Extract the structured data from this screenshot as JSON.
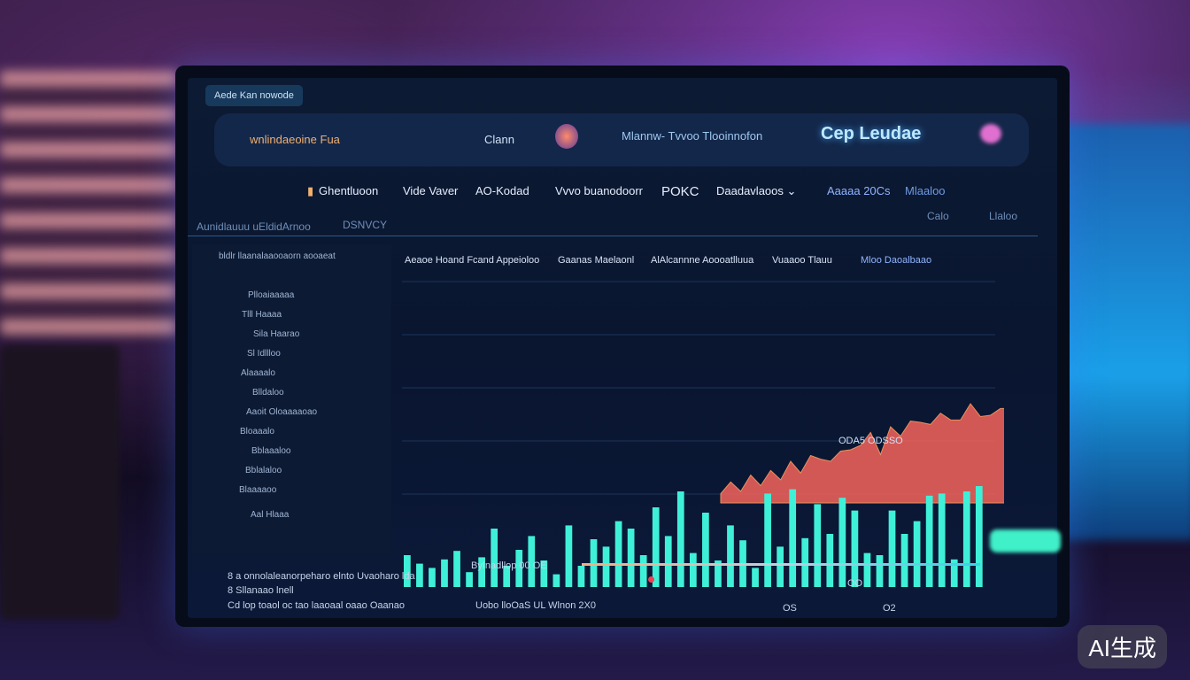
{
  "top_pill": "Aede Kan nowode",
  "header": {
    "brand": "wnlindaeoine Fua",
    "item1": "Clann",
    "item2": "Mlannw- Tvvoo Tlooinnofon",
    "title": "Cep Leudae"
  },
  "nav": [
    "Ghentluoon",
    "Vide Vaver",
    "AO-Kodad",
    "Vvvo buanodoorr",
    "POKC",
    "Daadavlaoos ⌄",
    "Aaaaa 20Cs",
    "Mlaaloo"
  ],
  "subbar": {
    "left": "Aunidlauuu uEldidArnoo",
    "mid": "DSNVCY",
    "r1": "Calo",
    "r2": "Llaloo"
  },
  "tabs": [
    "Aeaoe Hoand Fcand Appeioloo",
    "Gaanas Maelaonl",
    "AlAlcannne Aoooatlluua",
    "Vuaaoo Tlauu",
    "Mloo Daoalbaao"
  ],
  "sidebar": [
    "bldlr llaanalaaooaorn aooaeat",
    "Plloaiaaaaa",
    "Tlll Haaaa",
    "Sila Haarao",
    "Sl Idllloo",
    "Alaaaalo",
    "Blldaloo",
    "Aaoit Oloaaaaoao",
    "Bloaaalo",
    "Bblaaaloo",
    "Bblalaloo",
    "Blaaaaoo",
    "Aal Hlaaa"
  ],
  "ticker": "ODA5 ODSSO",
  "bottom": {
    "row1": "ByInadllop 00 OE",
    "row2": "Uobo lloOaS UL Wlnon 2X0",
    "v1": "OO",
    "v2": "OS",
    "v3": "O2",
    "notes": [
      "8 a onnolaleanorpeharo elnto Uvaoharo lda",
      "8 Sllanaao lnell",
      "Cd lop toaol oc tao laaoaal oaao Oaanao"
    ]
  },
  "watermark": "AI生成",
  "colors": {
    "accent": "#3ff0d8",
    "area": "#ff7a4a",
    "bg": "#0b1838"
  },
  "chart_data": {
    "type": "bar",
    "title": "",
    "bars": [
      30,
      22,
      18,
      26,
      34,
      14,
      28,
      55,
      20,
      35,
      48,
      25,
      12,
      58,
      20,
      45,
      38,
      62,
      55,
      30,
      75,
      48,
      90,
      32,
      70,
      25,
      58,
      44,
      18,
      88,
      38,
      92,
      46,
      78,
      50,
      84,
      72,
      32,
      30,
      72,
      50,
      62,
      86,
      88,
      26,
      90,
      95
    ],
    "area": [
      8,
      12,
      10,
      18,
      15,
      22,
      20,
      30,
      26,
      35,
      38,
      30,
      45,
      40,
      50,
      55,
      42,
      60,
      58,
      65,
      70,
      62,
      78,
      66,
      72,
      80,
      75,
      70,
      82,
      76,
      68,
      85,
      74,
      78,
      88,
      80,
      72,
      84,
      90,
      82
    ]
  }
}
